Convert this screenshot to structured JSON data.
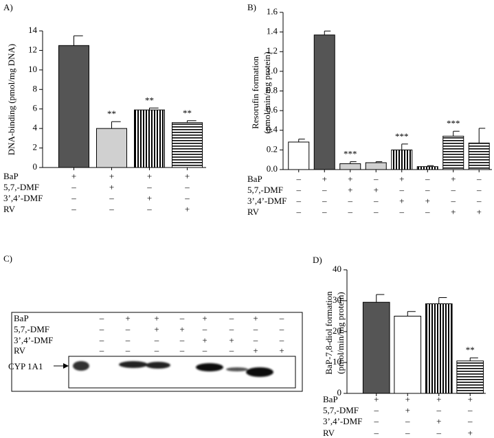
{
  "chart_data": [
    {
      "type": "bar",
      "label": "A)",
      "ylabel": [
        "DNA-binding (pmol/mg DNA)"
      ],
      "values": [
        12.5,
        4.0,
        5.9,
        4.6
      ],
      "errors": [
        1.0,
        0.7,
        0.2,
        0.2
      ],
      "sig_labels": [
        null,
        "**",
        "**",
        "**"
      ],
      "colors": [
        "#555555",
        "#d0d0d0",
        "#000000",
        "#000000"
      ],
      "patterns": [
        "solid",
        "solid",
        "vertical",
        "horizontal"
      ],
      "ylim": [
        0,
        14
      ],
      "yticks": [
        0,
        2,
        4,
        6,
        8,
        10,
        12,
        14
      ],
      "treatments": [
        {
          "label": "BaP",
          "signs": [
            "+",
            "+",
            "+",
            "+"
          ]
        },
        {
          "label": "5,7,-DMF",
          "signs": [
            "–",
            "+",
            "–",
            "–"
          ]
        },
        {
          "label": "3’,4’-DMF",
          "signs": [
            "–",
            "–",
            "+",
            "–"
          ]
        },
        {
          "label": "RV",
          "signs": [
            "–",
            "–",
            "–",
            "+"
          ]
        }
      ]
    },
    {
      "type": "bar",
      "label": "B)",
      "ylabel": [
        "Resorufin formation",
        "(pmol/min/mg protein)"
      ],
      "values": [
        0.28,
        1.37,
        0.06,
        0.07,
        0.2,
        0.03,
        0.34,
        0.27
      ],
      "errors": [
        0.03,
        0.04,
        0.02,
        0.01,
        0.06,
        0.01,
        0.05,
        0.15
      ],
      "sig_labels": [
        null,
        null,
        "***",
        null,
        "***",
        null,
        "***",
        null
      ],
      "colors": [
        "#ffffff",
        "#555555",
        "#d0d0d0",
        "#d0d0d0",
        "#000000",
        "#000000",
        "#000000",
        "#000000"
      ],
      "patterns": [
        "solid",
        "solid",
        "solid",
        "solid",
        "vertical",
        "vertical",
        "horizontal",
        "horizontal"
      ],
      "ylim": [
        0,
        1.6
      ],
      "yticks": [
        {
          "value": 0,
          "label": "0.0"
        },
        0.2,
        0.4,
        0.6,
        0.8,
        {
          "value": 1,
          "label": "1.0"
        },
        1.2,
        1.4,
        1.6
      ],
      "treatments": [
        {
          "label": "BaP",
          "signs": [
            "–",
            "+",
            "+",
            "–",
            "+",
            "–",
            "+",
            "–"
          ]
        },
        {
          "label": "5,7,-DMF",
          "signs": [
            "–",
            "–",
            "+",
            "+",
            "–",
            "–",
            "–",
            "–"
          ]
        },
        {
          "label": "3’,4’-DMF",
          "signs": [
            "–",
            "–",
            "–",
            "–",
            "+",
            "+",
            "–",
            "–"
          ]
        },
        {
          "label": "RV",
          "signs": [
            "–",
            "–",
            "–",
            "–",
            "–",
            "–",
            "+",
            "+"
          ]
        }
      ]
    },
    {
      "type": "bar",
      "label": "D)",
      "ylabel": [
        "BaP-7,8-diol formation",
        "(pmol/min/mg protein)"
      ],
      "values": [
        29.5,
        25,
        29,
        10.5
      ],
      "errors": [
        2.5,
        1.5,
        2,
        1
      ],
      "sig_labels": [
        null,
        null,
        null,
        "**"
      ],
      "colors": [
        "#555555",
        "#ffffff",
        "#000000",
        "#000000"
      ],
      "patterns": [
        "solid",
        "solid",
        "vertical",
        "horizontal"
      ],
      "ylim": [
        0,
        40
      ],
      "yticks": [
        0,
        10,
        20,
        30,
        40
      ],
      "treatments": [
        {
          "label": "BaP",
          "signs": [
            "+",
            "+",
            "+",
            "+"
          ]
        },
        {
          "label": "5,7,-DMF",
          "signs": [
            "–",
            "+",
            "–",
            "–"
          ]
        },
        {
          "label": "3’,4’-DMF",
          "signs": [
            "–",
            "–",
            "+",
            "–"
          ]
        },
        {
          "label": "RV",
          "signs": [
            "–",
            "–",
            "–",
            "+"
          ]
        }
      ]
    }
  ],
  "blot": {
    "label": "C)",
    "marker": "CYP 1A1",
    "treatments": [
      {
        "label": "BaP",
        "signs": [
          "–",
          "+",
          "+",
          "–",
          "+",
          "–",
          "+",
          "–"
        ]
      },
      {
        "label": "5,7,-DMF",
        "signs": [
          "–",
          "–",
          "+",
          "+",
          "–",
          "–",
          "–",
          "–"
        ]
      },
      {
        "label": "3’,4’-DMF",
        "signs": [
          "–",
          "–",
          "–",
          "–",
          "+",
          "+",
          "–",
          "–"
        ]
      },
      {
        "label": "RV",
        "signs": [
          "–",
          "–",
          "–",
          "–",
          "–",
          "–",
          "+",
          "+"
        ]
      }
    ]
  }
}
